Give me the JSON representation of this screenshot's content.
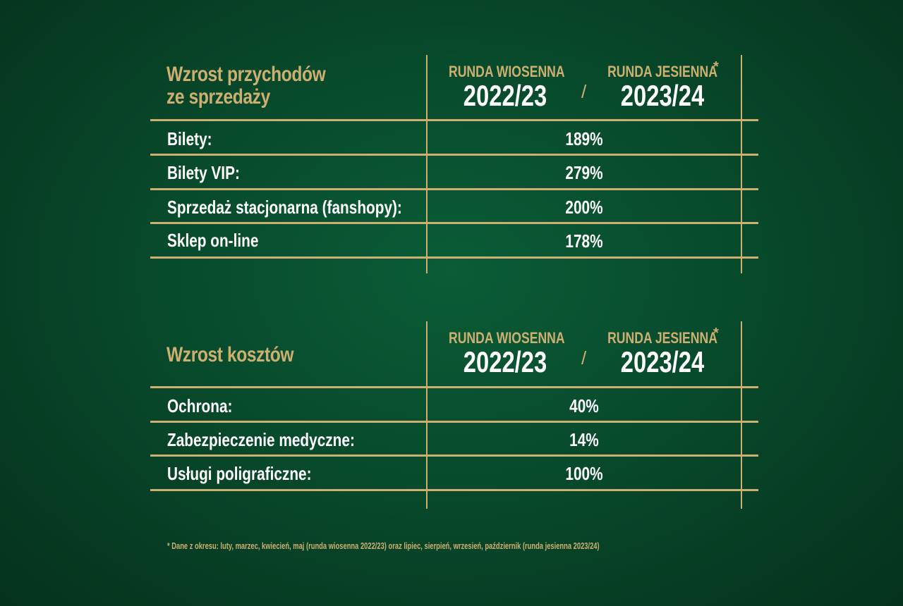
{
  "colors": {
    "gold": "#cdb071",
    "white": "#ffffff",
    "background": "#084a2c"
  },
  "tables": [
    {
      "title": "Wzrost przychodów\nze sprzedaży",
      "period_a": {
        "label": "RUNDA WIOSENNA",
        "year": "2022/23"
      },
      "separator": "/",
      "period_b": {
        "label": "RUNDA JESIENNA",
        "year": "2023/24",
        "mark": "*"
      },
      "rows": [
        {
          "label": "Bilety:",
          "value": "189%"
        },
        {
          "label": "Bilety VIP:",
          "value": "279%"
        },
        {
          "label": "Sprzedaż stacjonarna (fanshopy):",
          "value": "200%"
        },
        {
          "label": "Sklep on-line",
          "value": "178%"
        }
      ]
    },
    {
      "title": "Wzrost kosztów",
      "period_a": {
        "label": "RUNDA WIOSENNA",
        "year": "2022/23"
      },
      "separator": "/",
      "period_b": {
        "label": "RUNDA JESIENNA",
        "year": "2023/24",
        "mark": "*"
      },
      "rows": [
        {
          "label": "Ochrona:",
          "value": "40%"
        },
        {
          "label": "Zabezpieczenie medyczne:",
          "value": "14%"
        },
        {
          "label": "Usługi poligraficzne:",
          "value": "100%"
        }
      ]
    }
  ],
  "chart_data": [
    {
      "type": "table",
      "title": "Wzrost przychodów ze sprzedaży",
      "columns": [
        "RUNDA WIOSENNA 2022/23",
        "RUNDA JESIENNA 2023/24"
      ],
      "categories": [
        "Bilety:",
        "Bilety VIP:",
        "Sprzedaż stacjonarna (fanshopy):",
        "Sklep on-line"
      ],
      "values": [
        189,
        279,
        200,
        178
      ],
      "unit": "%"
    },
    {
      "type": "table",
      "title": "Wzrost kosztów",
      "columns": [
        "RUNDA WIOSENNA 2022/23",
        "RUNDA JESIENNA 2023/24"
      ],
      "categories": [
        "Ochrona:",
        "Zabezpieczenie medyczne:",
        "Usługi poligraficzne:"
      ],
      "values": [
        40,
        14,
        100
      ],
      "unit": "%"
    }
  ],
  "footnote": "*  Dane z okresu: luty, marzec, kwiecień, maj (runda wiosenna 2022/23) oraz lipiec, sierpień, wrzesień, październik (runda jesienna 2023/24)"
}
